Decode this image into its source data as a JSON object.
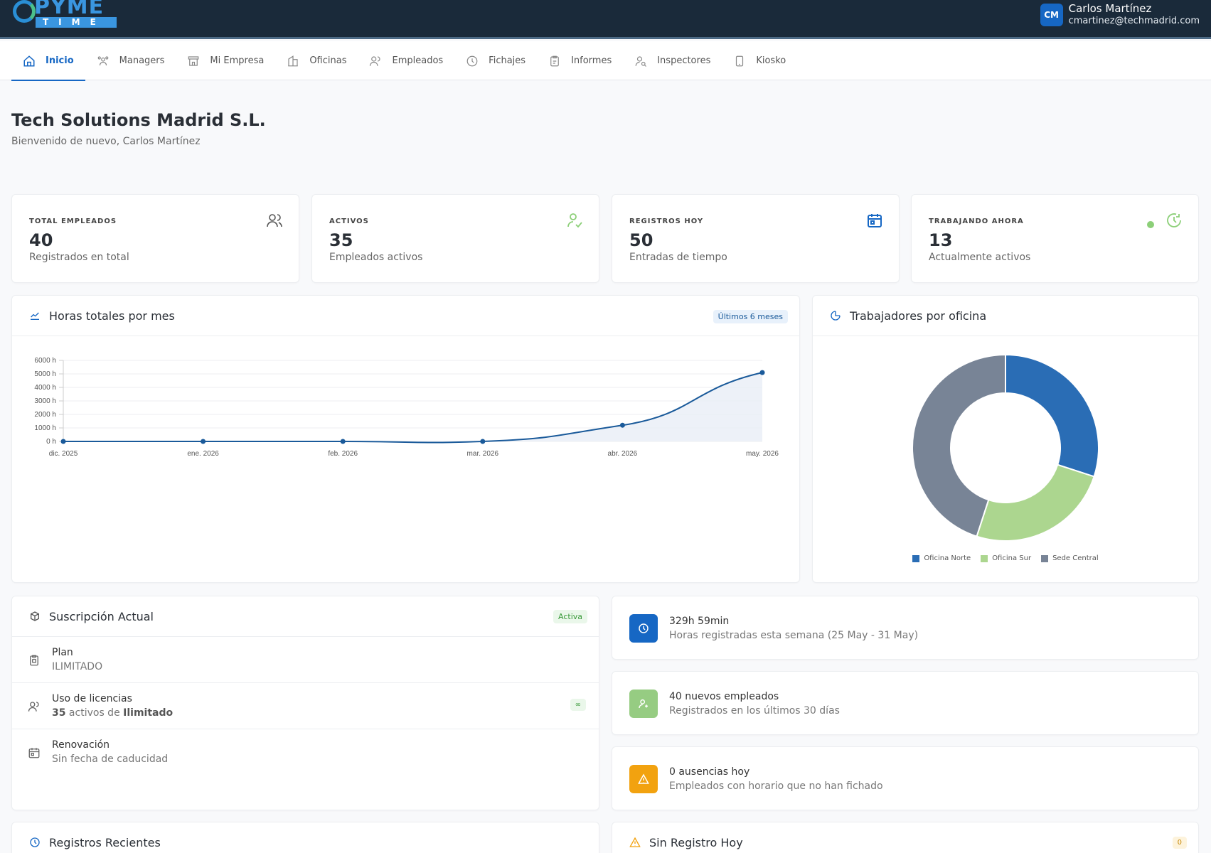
{
  "app": {
    "logo_text": "PYME",
    "logo_sub": "TIME"
  },
  "user": {
    "initials": "CM",
    "name": "Carlos Martínez",
    "email": "cmartinez@techmadrid.com"
  },
  "nav": [
    {
      "label": "Inicio",
      "icon": "home-icon",
      "active": true
    },
    {
      "label": "Managers",
      "icon": "users-group-icon"
    },
    {
      "label": "Mi Empresa",
      "icon": "store-icon"
    },
    {
      "label": "Oficinas",
      "icon": "building-icon"
    },
    {
      "label": "Empleados",
      "icon": "users-icon"
    },
    {
      "label": "Fichajes",
      "icon": "clock-icon"
    },
    {
      "label": "Informes",
      "icon": "report-icon"
    },
    {
      "label": "Inspectores",
      "icon": "user-search-icon"
    },
    {
      "label": "Kiosko",
      "icon": "tablet-icon"
    }
  ],
  "header": {
    "title": "Tech Solutions Madrid S.L.",
    "subtitle": "Bienvenido de nuevo, Carlos Martínez"
  },
  "stats": [
    {
      "label": "TOTAL EMPLEADOS",
      "value": "40",
      "desc": "Registrados en total",
      "icon": "users-icon",
      "color": "#555555"
    },
    {
      "label": "ACTIVOS",
      "value": "35",
      "desc": "Empleados activos",
      "icon": "user-check-icon",
      "color": "#8ccf78"
    },
    {
      "label": "REGISTROS HOY",
      "value": "50",
      "desc": "Entradas de tiempo",
      "icon": "calendar-icon",
      "color": "#1667c4"
    },
    {
      "label": "TRABAJANDO AHORA",
      "value": "13",
      "desc": "Actualmente activos",
      "icon": "clock-icon",
      "color": "#8ccf78"
    }
  ],
  "hours_card": {
    "title": "Horas totales por mes",
    "badge": "Últimos 6 meses"
  },
  "office_card": {
    "title": "Trabajadores por oficina"
  },
  "chart_data": [
    {
      "type": "area",
      "x": [
        "dic. 2025",
        "ene. 2026",
        "feb. 2026",
        "mar. 2026",
        "abr. 2026",
        "may. 2026"
      ],
      "values": [
        0,
        0,
        0,
        0,
        1200,
        5100
      ],
      "y_ticks": [
        "0 h",
        "1000 h",
        "2000 h",
        "3000 h",
        "4000 h",
        "5000 h",
        "6000 h"
      ],
      "ylim": [
        0,
        6000
      ],
      "color": "#1a5a9a",
      "grid": true
    },
    {
      "type": "pie",
      "labels": [
        "Oficina Norte",
        "Oficina Sur",
        "Sede Central"
      ],
      "values": [
        12,
        10,
        18
      ],
      "colors": [
        "#2a6db5",
        "#acd68f",
        "#788496"
      ],
      "legend": "bottom"
    }
  ],
  "subscription": {
    "title": "Suscripción Actual",
    "badge": "Activa",
    "plan_label": "Plan",
    "plan_value": "ILIMITADO",
    "licenses_label": "Uso de licencias",
    "licenses_active": "35",
    "licenses_mid": " activos de ",
    "licenses_limit": "Ilimitado",
    "licenses_badge": "∞",
    "renewal_label": "Renovación",
    "renewal_value": "Sin fecha de caducidad"
  },
  "info": [
    {
      "title": "329h 59min",
      "desc": "Horas registradas esta semana (25 May - 31 May)",
      "icon": "clock-icon",
      "color": "#1667c4"
    },
    {
      "title": "40 nuevos empleados",
      "desc": "Registrados en los últimos 30 días",
      "icon": "user-plus-icon",
      "color": "#96cc82"
    },
    {
      "title": "0 ausencias hoy",
      "desc": "Empleados con horario que no han fichado",
      "icon": "alert-icon",
      "color": "#f2a20f"
    }
  ],
  "recent": {
    "title": "Registros Recientes"
  },
  "noreg": {
    "title": "Sin Registro Hoy",
    "badge": "0"
  }
}
